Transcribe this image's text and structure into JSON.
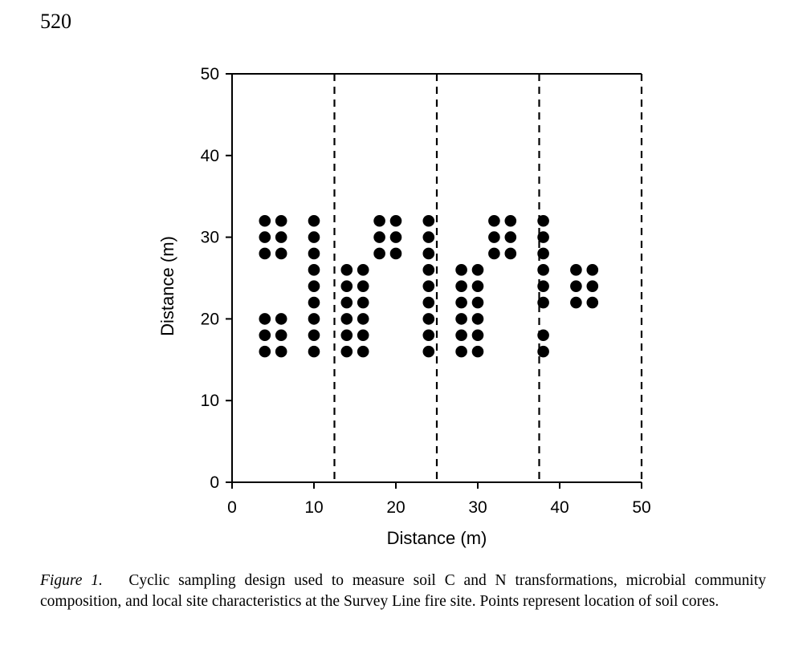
{
  "page_number": "520",
  "caption": {
    "label": "Figure 1.",
    "text": "Cyclic sampling design used to measure soil C and N transformations, microbial community composition, and local site characteristics at the Survey Line fire site. Points represent location of soil cores."
  },
  "chart_data": {
    "type": "scatter",
    "xlabel": "Distance (m)",
    "ylabel": "Distance (m)",
    "xlim": [
      0,
      50
    ],
    "ylim": [
      0,
      50
    ],
    "xticks": [
      0,
      10,
      20,
      30,
      40,
      50
    ],
    "yticks": [
      0,
      10,
      20,
      30,
      40,
      50
    ],
    "grid": false,
    "dashed_vertical_lines_x": [
      12.5,
      25,
      37.5,
      50
    ],
    "points": [
      [
        4,
        32
      ],
      [
        6,
        32
      ],
      [
        4,
        30
      ],
      [
        6,
        30
      ],
      [
        4,
        28
      ],
      [
        6,
        28
      ],
      [
        4,
        20
      ],
      [
        6,
        20
      ],
      [
        4,
        18
      ],
      [
        6,
        18
      ],
      [
        4,
        16
      ],
      [
        6,
        16
      ],
      [
        10,
        32
      ],
      [
        10,
        30
      ],
      [
        10,
        28
      ],
      [
        10,
        26
      ],
      [
        10,
        24
      ],
      [
        10,
        22
      ],
      [
        10,
        20
      ],
      [
        10,
        18
      ],
      [
        10,
        16
      ],
      [
        14,
        26
      ],
      [
        16,
        26
      ],
      [
        14,
        24
      ],
      [
        16,
        24
      ],
      [
        14,
        22
      ],
      [
        16,
        22
      ],
      [
        14,
        20
      ],
      [
        16,
        20
      ],
      [
        14,
        18
      ],
      [
        16,
        18
      ],
      [
        14,
        16
      ],
      [
        16,
        16
      ],
      [
        18,
        32
      ],
      [
        20,
        32
      ],
      [
        18,
        30
      ],
      [
        20,
        30
      ],
      [
        18,
        28
      ],
      [
        20,
        28
      ],
      [
        24,
        32
      ],
      [
        24,
        30
      ],
      [
        24,
        28
      ],
      [
        24,
        26
      ],
      [
        24,
        24
      ],
      [
        24,
        22
      ],
      [
        24,
        20
      ],
      [
        24,
        18
      ],
      [
        24,
        16
      ],
      [
        28,
        26
      ],
      [
        30,
        26
      ],
      [
        28,
        24
      ],
      [
        30,
        24
      ],
      [
        28,
        22
      ],
      [
        30,
        22
      ],
      [
        28,
        20
      ],
      [
        30,
        20
      ],
      [
        28,
        18
      ],
      [
        30,
        18
      ],
      [
        28,
        16
      ],
      [
        30,
        16
      ],
      [
        32,
        32
      ],
      [
        34,
        32
      ],
      [
        32,
        30
      ],
      [
        34,
        30
      ],
      [
        32,
        28
      ],
      [
        34,
        28
      ],
      [
        38,
        32
      ],
      [
        38,
        30
      ],
      [
        38,
        28
      ],
      [
        38,
        26
      ],
      [
        38,
        24
      ],
      [
        38,
        22
      ],
      [
        38,
        18
      ],
      [
        38,
        16
      ],
      [
        42,
        26
      ],
      [
        44,
        26
      ],
      [
        42,
        24
      ],
      [
        44,
        24
      ],
      [
        42,
        22
      ],
      [
        44,
        22
      ]
    ]
  }
}
